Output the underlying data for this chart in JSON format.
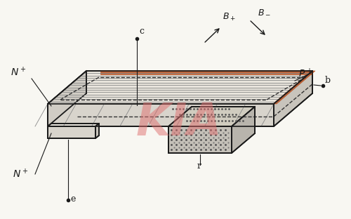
{
  "bg_color": "#f8f7f2",
  "line_color": "#1a1a1a",
  "face_top": "#e8e4dc",
  "face_front": "#d8d4cc",
  "face_right": "#c8c4bc",
  "face_left": "#d0ccc4",
  "orange_color": "#b85020",
  "dot_color": "#555555",
  "watermark_color": "#e07070",
  "watermark_text": "KIA",
  "figsize": [
    5.0,
    3.12
  ],
  "dpi": 100,
  "labels": {
    "N_top": "N+",
    "N_bot": "N+",
    "P": "P+",
    "c": "c",
    "b": "b",
    "e": "e",
    "r": "r"
  }
}
